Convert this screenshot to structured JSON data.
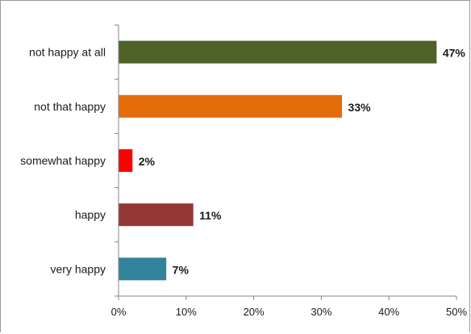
{
  "chart_data": {
    "type": "bar",
    "orientation": "horizontal",
    "categories": [
      "not happy at all",
      "not that happy",
      "somewhat happy",
      "happy",
      "very happy"
    ],
    "values": [
      47,
      33,
      2,
      11,
      7
    ],
    "data_labels": [
      "47%",
      "33%",
      "2%",
      "11%",
      "7%"
    ],
    "colors": [
      "#4f6228",
      "#e46c0a",
      "#ff0000",
      "#953735",
      "#31849b"
    ],
    "xlim": [
      0,
      50
    ],
    "xticks": [
      0,
      10,
      20,
      30,
      40,
      50
    ],
    "xtick_labels": [
      "0%",
      "10%",
      "20%",
      "30%",
      "40%",
      "50%"
    ],
    "title": "",
    "xlabel": "",
    "ylabel": "",
    "grid": false,
    "legend": "none"
  }
}
